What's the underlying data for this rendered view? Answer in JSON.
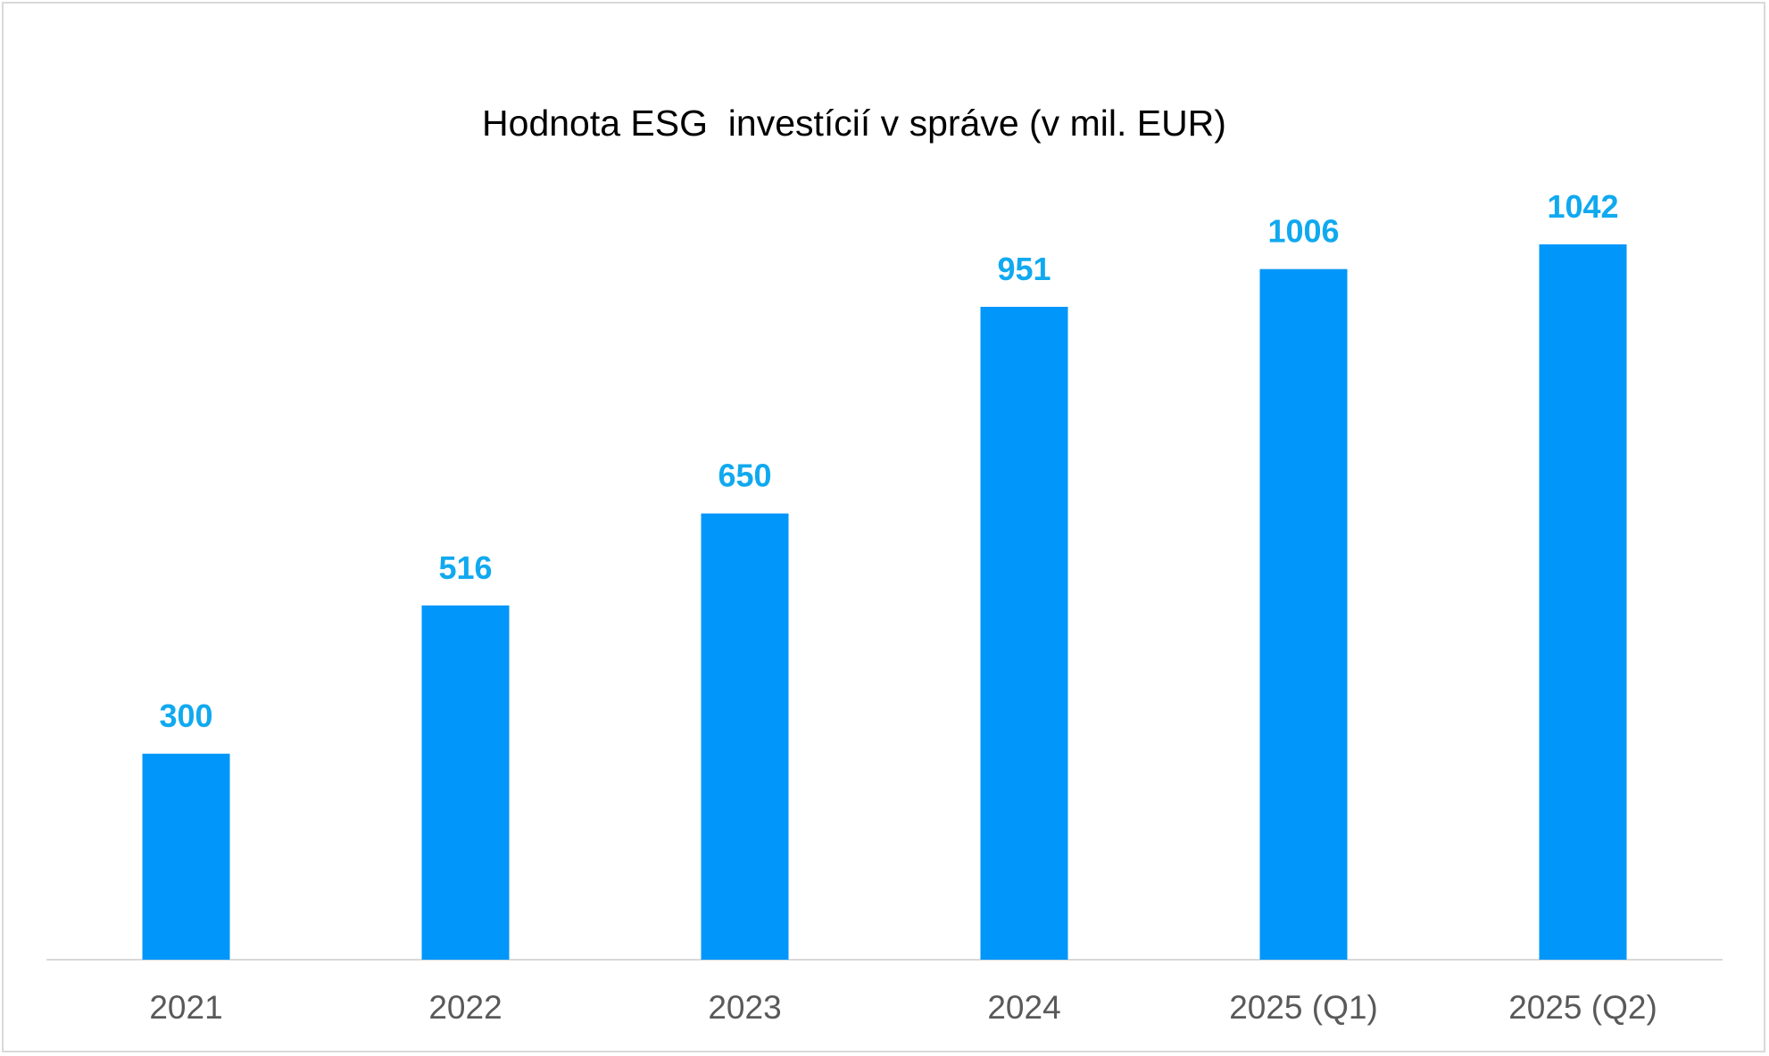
{
  "chart_data": {
    "type": "bar",
    "title": "Hodnota ESG  investícií v správe (v mil. EUR)",
    "xlabel": "",
    "ylabel": "",
    "categories": [
      "2021",
      "2022",
      "2023",
      "2024",
      "2025 (Q1)",
      "2025 (Q2)"
    ],
    "values": [
      300,
      516,
      650,
      951,
      1006,
      1042
    ],
    "ylim": [
      0,
      1042
    ],
    "grid": false,
    "legend": "none",
    "data_labels": true,
    "colors": {
      "bar": "#0096fa",
      "data_label": "#10a9f0",
      "axis_line": "#d9d9d9",
      "category_text": "#595959",
      "title_text": "#000000"
    }
  }
}
